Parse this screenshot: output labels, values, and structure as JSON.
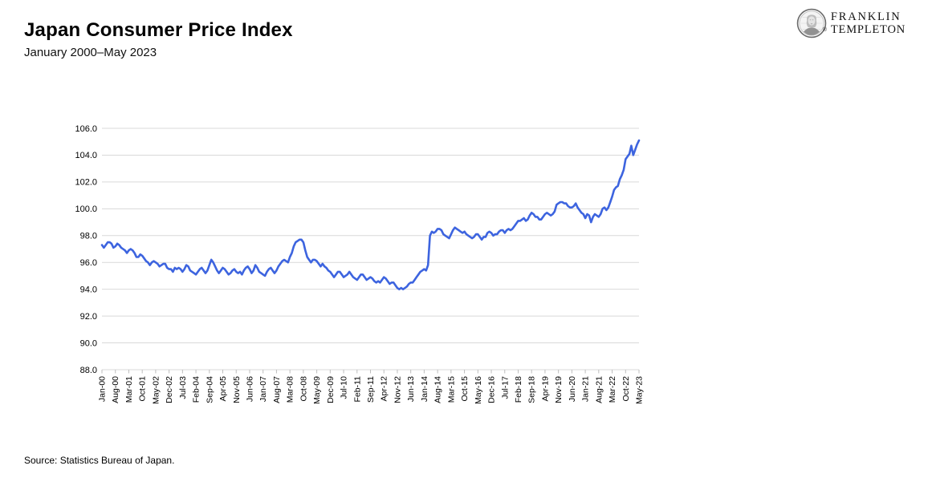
{
  "header": {
    "title": "Japan Consumer Price Index",
    "subtitle": "January 2000–May 2023"
  },
  "logo": {
    "line1": "FRANKLIN",
    "line2": "TEMPLETON",
    "registered": "®",
    "icon": "franklin-portrait-icon"
  },
  "footer": {
    "source": "Source: Statistics Bureau of Japan."
  },
  "chart_data": {
    "type": "line",
    "title": "Japan Consumer Price Index",
    "series_name": "Japan CPI (index level)",
    "x_start": "Jan-00",
    "x_end": "May-23",
    "x_frequency": "monthly",
    "tick_interval_months": 7,
    "tick_labels": [
      "Jan-00",
      "Aug-00",
      "Mar-01",
      "Oct-01",
      "May-02",
      "Dec-02",
      "Jul-03",
      "Feb-04",
      "Sep-04",
      "Apr-05",
      "Nov-05",
      "Jun-06",
      "Jan-07",
      "Aug-07",
      "Mar-08",
      "Oct-08",
      "May-09",
      "Dec-09",
      "Jul-10",
      "Feb-11",
      "Sep-11",
      "Apr-12",
      "Nov-12",
      "Jun-13",
      "Jan-14",
      "Aug-14",
      "Mar-15",
      "Oct-15",
      "May-16",
      "Dec-16",
      "Jul-17",
      "Feb-18",
      "Sep-18",
      "Apr-19",
      "Nov-19",
      "Jun-20",
      "Jan-21",
      "Aug-21",
      "Mar-22",
      "Oct-22",
      "May-23"
    ],
    "ytick_labels": [
      "88.0",
      "90.0",
      "92.0",
      "94.0",
      "96.0",
      "98.0",
      "100.0",
      "102.0",
      "104.0",
      "106.0"
    ],
    "ylim": [
      88.0,
      106.0
    ],
    "ytick_step": 2.0,
    "grid": "horizontal",
    "legend": "none",
    "line_color": "#3D64DF",
    "gridline_color": "#D9D9D9",
    "tick_color": "#BDBDBD",
    "values": [
      97.3,
      97.1,
      97.3,
      97.5,
      97.5,
      97.4,
      97.1,
      97.2,
      97.4,
      97.3,
      97.1,
      97.0,
      96.9,
      96.7,
      96.9,
      97.0,
      96.9,
      96.7,
      96.4,
      96.4,
      96.6,
      96.5,
      96.3,
      96.1,
      96.0,
      95.8,
      96.0,
      96.1,
      96.0,
      95.9,
      95.7,
      95.8,
      95.9,
      95.9,
      95.6,
      95.5,
      95.5,
      95.3,
      95.6,
      95.5,
      95.6,
      95.5,
      95.3,
      95.5,
      95.8,
      95.7,
      95.4,
      95.3,
      95.2,
      95.1,
      95.3,
      95.5,
      95.6,
      95.4,
      95.2,
      95.4,
      95.8,
      96.2,
      96.0,
      95.7,
      95.4,
      95.2,
      95.4,
      95.6,
      95.5,
      95.3,
      95.1,
      95.2,
      95.4,
      95.5,
      95.3,
      95.2,
      95.3,
      95.1,
      95.4,
      95.6,
      95.7,
      95.5,
      95.2,
      95.4,
      95.8,
      95.6,
      95.3,
      95.2,
      95.1,
      95.0,
      95.3,
      95.5,
      95.6,
      95.4,
      95.2,
      95.4,
      95.7,
      95.9,
      96.1,
      96.2,
      96.1,
      96.0,
      96.4,
      96.7,
      97.2,
      97.5,
      97.6,
      97.7,
      97.7,
      97.5,
      96.9,
      96.4,
      96.2,
      96.0,
      96.2,
      96.2,
      96.1,
      95.9,
      95.7,
      95.9,
      95.7,
      95.6,
      95.4,
      95.3,
      95.1,
      94.9,
      95.1,
      95.3,
      95.3,
      95.1,
      94.9,
      95.0,
      95.1,
      95.3,
      95.1,
      94.9,
      94.8,
      94.7,
      94.9,
      95.1,
      95.1,
      94.9,
      94.7,
      94.8,
      94.9,
      94.8,
      94.6,
      94.5,
      94.6,
      94.5,
      94.7,
      94.9,
      94.8,
      94.6,
      94.4,
      94.5,
      94.5,
      94.3,
      94.1,
      94.0,
      94.1,
      94.0,
      94.1,
      94.2,
      94.4,
      94.5,
      94.5,
      94.7,
      94.9,
      95.1,
      95.3,
      95.4,
      95.5,
      95.4,
      95.8,
      98.0,
      98.3,
      98.2,
      98.3,
      98.5,
      98.5,
      98.4,
      98.1,
      98.0,
      97.9,
      97.8,
      98.1,
      98.4,
      98.6,
      98.5,
      98.4,
      98.3,
      98.2,
      98.3,
      98.1,
      98.0,
      97.9,
      97.8,
      97.9,
      98.1,
      98.1,
      97.9,
      97.7,
      97.9,
      97.9,
      98.2,
      98.3,
      98.2,
      98.0,
      98.1,
      98.1,
      98.3,
      98.4,
      98.4,
      98.2,
      98.4,
      98.5,
      98.4,
      98.5,
      98.7,
      98.9,
      99.1,
      99.1,
      99.2,
      99.3,
      99.1,
      99.2,
      99.5,
      99.7,
      99.6,
      99.4,
      99.4,
      99.2,
      99.2,
      99.4,
      99.6,
      99.7,
      99.6,
      99.5,
      99.6,
      99.8,
      100.3,
      100.4,
      100.5,
      100.5,
      100.4,
      100.4,
      100.2,
      100.1,
      100.1,
      100.2,
      100.4,
      100.1,
      99.9,
      99.7,
      99.6,
      99.3,
      99.6,
      99.5,
      99.0,
      99.4,
      99.6,
      99.5,
      99.4,
      99.6,
      100.0,
      100.1,
      99.9,
      100.1,
      100.5,
      100.9,
      101.4,
      101.6,
      101.7,
      102.2,
      102.5,
      102.9,
      103.7,
      103.9,
      104.1,
      104.7,
      104.0,
      104.4,
      104.8,
      105.1
    ]
  }
}
